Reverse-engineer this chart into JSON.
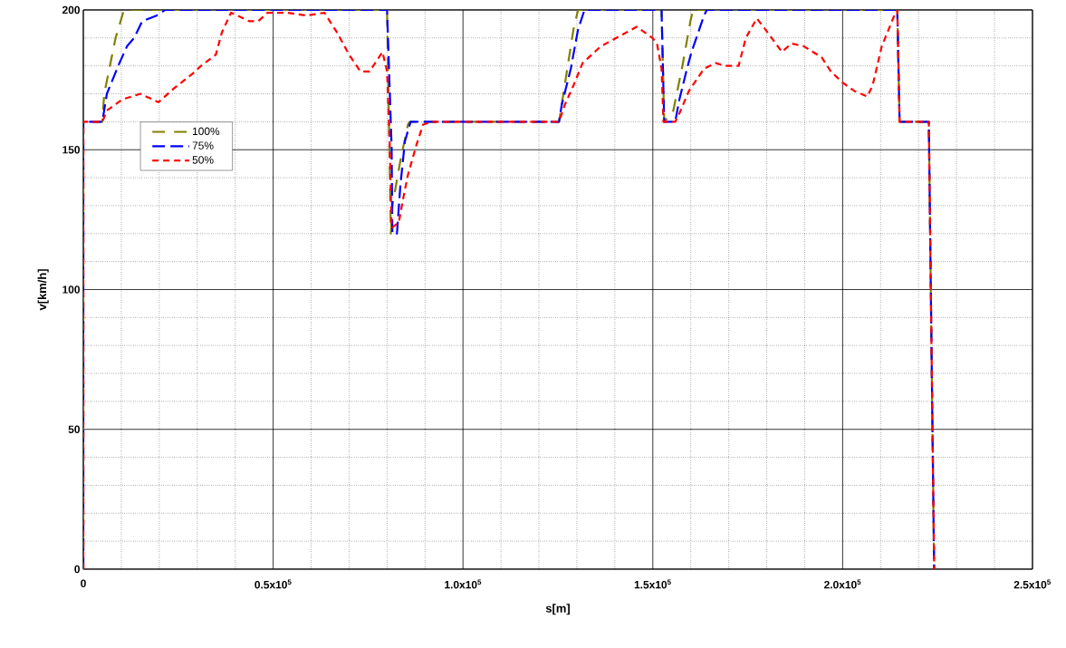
{
  "chart_data": {
    "type": "line",
    "xlabel": "s[m]",
    "ylabel": "v[km/h]",
    "xlim": [
      0,
      250000
    ],
    "ylim": [
      0,
      200
    ],
    "xticks": [
      0,
      {
        "value": 50000,
        "label": "0.5x10$^{5}$"
      },
      {
        "value": 100000,
        "label": "1.0x10$^{5}$"
      },
      {
        "value": 150000,
        "label": "1.5x10$^{5}$"
      },
      {
        "value": 200000,
        "label": "2.0x10$^{5}$"
      },
      {
        "value": 250000,
        "label": "2.5x10$^{5}$"
      }
    ],
    "yticks": [
      0,
      50,
      100,
      150,
      200
    ],
    "grid": true,
    "legend": "top left",
    "line_style": "dashed",
    "series": [
      {
        "name": "100%",
        "color": "#808000",
        "x": [
          0,
          0,
          5000,
          5500,
          7000,
          8500,
          10700,
          80000,
          81000,
          81400,
          83500,
          85500,
          86000,
          125300,
          127700,
          129100,
          130300,
          152300,
          153000,
          155400,
          157800,
          159900,
          160600,
          214400,
          215000,
          222700,
          224100
        ],
        "values": [
          0,
          160,
          160,
          170,
          180,
          190,
          200,
          200,
          120,
          130,
          146,
          159,
          160,
          160,
          181,
          193,
          200,
          200,
          160,
          164,
          180,
          196,
          200,
          200,
          160,
          160,
          0
        ]
      },
      {
        "name": "75%",
        "color": "#0000ff",
        "x": [
          0,
          0,
          5000,
          6200,
          9500,
          11500,
          13400,
          15500,
          19300,
          21500,
          80000,
          81200,
          81400,
          82600,
          83500,
          84700,
          86200,
          125300,
          126000,
          128400,
          130300,
          132000,
          152300,
          153000,
          155900,
          157000,
          159000,
          160200,
          163500,
          164200,
          214400,
          215000,
          222700,
          224100
        ],
        "values": [
          0,
          160,
          160,
          170,
          181,
          187,
          190,
          196,
          198,
          200,
          200,
          151,
          120,
          120,
          137,
          153,
          160,
          160,
          166,
          179,
          193,
          200,
          200,
          160,
          160,
          168,
          179,
          185,
          198,
          200,
          200,
          160,
          160,
          0
        ]
      },
      {
        "name": "50%",
        "color": "#ff0000",
        "x": [
          0,
          0,
          5000,
          6200,
          10300,
          15000,
          19800,
          23900,
          28600,
          31000,
          34900,
          36500,
          38900,
          43700,
          46100,
          48500,
          53900,
          58700,
          63500,
          66800,
          70000,
          73000,
          75400,
          78800,
          80000,
          80700,
          81200,
          83100,
          84300,
          85500,
          87800,
          89500,
          91900,
          121300,
          125300,
          126800,
          129100,
          131500,
          136300,
          140400,
          145800,
          149900,
          151100,
          152300,
          152800,
          155900,
          157000,
          159500,
          163500,
          166600,
          169000,
          172600,
          174500,
          177400,
          180200,
          184000,
          186500,
          189800,
          194500,
          196900,
          200000,
          203100,
          206500,
          207900,
          210300,
          213600,
          214400,
          215000,
          222700,
          224100
        ],
        "values": [
          0,
          160,
          160,
          164,
          168,
          170,
          167,
          172,
          177,
          180,
          184,
          192,
          199,
          196,
          196,
          199,
          199,
          198,
          199,
          192,
          184,
          178,
          178,
          185,
          178,
          152,
          122,
          124,
          133,
          141,
          152,
          159,
          160,
          160,
          160,
          166,
          173,
          181,
          187,
          190,
          194,
          190,
          188,
          179,
          160,
          160,
          163,
          171,
          179,
          181,
          180,
          180,
          190,
          197,
          192,
          185,
          188,
          187,
          183,
          178,
          174,
          171,
          169,
          173,
          187,
          198,
          200,
          160,
          160,
          0
        ]
      }
    ]
  }
}
